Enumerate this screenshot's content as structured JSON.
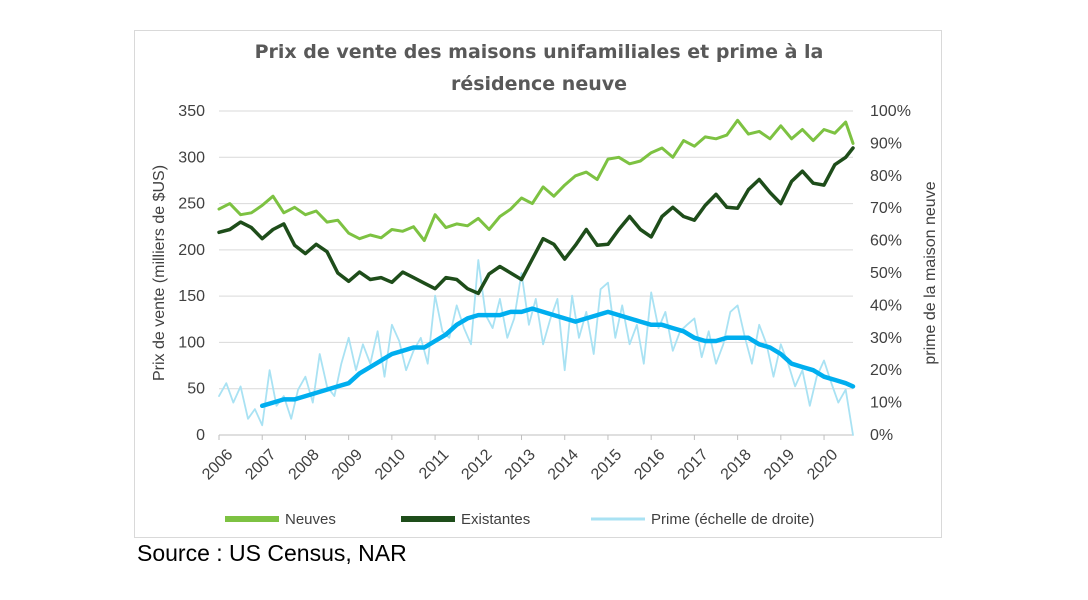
{
  "chart_data": {
    "type": "line",
    "title_lines": [
      "Prix de vente des maisons unifamiliales et prime à la",
      "résidence neuve"
    ],
    "ylabel_left": "Prix de vente (milliers de $US)",
    "ylabel_right": "prime de la maison neuve",
    "ylim_left": [
      0,
      350
    ],
    "ylim_right": [
      0,
      1
    ],
    "yticks_left": [
      "0",
      "50",
      "100",
      "150",
      "200",
      "250",
      "300",
      "350"
    ],
    "yticks_right": [
      "0%",
      "10%",
      "20%",
      "30%",
      "40%",
      "50%",
      "60%",
      "70%",
      "80%",
      "90%",
      "100%"
    ],
    "xticks": [
      "2006",
      "2007",
      "2008",
      "2009",
      "2010",
      "2011",
      "2012",
      "2013",
      "2014",
      "2015",
      "2016",
      "2017",
      "2018",
      "2019",
      "2020"
    ],
    "xlim": [
      2006,
      2020.67
    ],
    "grid": "horizontal",
    "legend_position": "bottom",
    "series": [
      {
        "name": "Neuves",
        "axis": "left",
        "color": "#7dc242",
        "width": 3,
        "x": [
          2006.0,
          2006.25,
          2006.5,
          2006.75,
          2007.0,
          2007.25,
          2007.5,
          2007.75,
          2008.0,
          2008.25,
          2008.5,
          2008.75,
          2009.0,
          2009.25,
          2009.5,
          2009.75,
          2010.0,
          2010.25,
          2010.5,
          2010.75,
          2011.0,
          2011.25,
          2011.5,
          2011.75,
          2012.0,
          2012.25,
          2012.5,
          2012.75,
          2013.0,
          2013.25,
          2013.5,
          2013.75,
          2014.0,
          2014.25,
          2014.5,
          2014.75,
          2015.0,
          2015.25,
          2015.5,
          2015.75,
          2016.0,
          2016.25,
          2016.5,
          2016.75,
          2017.0,
          2017.25,
          2017.5,
          2017.75,
          2018.0,
          2018.25,
          2018.5,
          2018.75,
          2019.0,
          2019.25,
          2019.5,
          2019.75,
          2020.0,
          2020.25,
          2020.5,
          2020.67
        ],
        "values": [
          244,
          250,
          238,
          240,
          248,
          258,
          240,
          246,
          238,
          242,
          230,
          232,
          218,
          212,
          216,
          213,
          222,
          220,
          225,
          210,
          238,
          224,
          228,
          226,
          234,
          222,
          236,
          244,
          256,
          250,
          268,
          258,
          270,
          280,
          284,
          276,
          298,
          300,
          293,
          296,
          305,
          310,
          300,
          318,
          312,
          322,
          320,
          324,
          340,
          325,
          328,
          320,
          334,
          320,
          330,
          318,
          330,
          326,
          338,
          315
        ]
      },
      {
        "name": "Existantes",
        "axis": "left",
        "color": "#1e4d1a",
        "width": 3.5,
        "x": [
          2006.0,
          2006.25,
          2006.5,
          2006.75,
          2007.0,
          2007.25,
          2007.5,
          2007.75,
          2008.0,
          2008.25,
          2008.5,
          2008.75,
          2009.0,
          2009.25,
          2009.5,
          2009.75,
          2010.0,
          2010.25,
          2010.5,
          2010.75,
          2011.0,
          2011.25,
          2011.5,
          2011.75,
          2012.0,
          2012.25,
          2012.5,
          2012.75,
          2013.0,
          2013.25,
          2013.5,
          2013.75,
          2014.0,
          2014.25,
          2014.5,
          2014.75,
          2015.0,
          2015.25,
          2015.5,
          2015.75,
          2016.0,
          2016.25,
          2016.5,
          2016.75,
          2017.0,
          2017.25,
          2017.5,
          2017.75,
          2018.0,
          2018.25,
          2018.5,
          2018.75,
          2019.0,
          2019.25,
          2019.5,
          2019.75,
          2020.0,
          2020.25,
          2020.5,
          2020.67
        ],
        "values": [
          219,
          222,
          230,
          224,
          212,
          222,
          228,
          205,
          196,
          206,
          198,
          175,
          166,
          176,
          168,
          170,
          165,
          176,
          170,
          164,
          158,
          170,
          168,
          158,
          153,
          174,
          182,
          175,
          168,
          190,
          212,
          206,
          190,
          205,
          222,
          205,
          206,
          222,
          236,
          222,
          214,
          236,
          246,
          236,
          232,
          248,
          260,
          246,
          245,
          265,
          276,
          262,
          250,
          274,
          285,
          272,
          270,
          292,
          300,
          310
        ]
      },
      {
        "name": "Prime (échelle de droite)",
        "axis": "right",
        "color": "#a9e2f3",
        "width": 1.8,
        "x": [
          2006.0,
          2006.17,
          2006.33,
          2006.5,
          2006.67,
          2006.83,
          2007.0,
          2007.17,
          2007.33,
          2007.5,
          2007.67,
          2007.83,
          2008.0,
          2008.17,
          2008.33,
          2008.5,
          2008.67,
          2008.83,
          2009.0,
          2009.17,
          2009.33,
          2009.5,
          2009.67,
          2009.83,
          2010.0,
          2010.17,
          2010.33,
          2010.5,
          2010.67,
          2010.83,
          2011.0,
          2011.17,
          2011.33,
          2011.5,
          2011.67,
          2011.83,
          2012.0,
          2012.17,
          2012.33,
          2012.5,
          2012.67,
          2012.83,
          2013.0,
          2013.17,
          2013.33,
          2013.5,
          2013.67,
          2013.83,
          2014.0,
          2014.17,
          2014.33,
          2014.5,
          2014.67,
          2014.83,
          2015.0,
          2015.17,
          2015.33,
          2015.5,
          2015.67,
          2015.83,
          2016.0,
          2016.17,
          2016.33,
          2016.5,
          2016.67,
          2016.83,
          2017.0,
          2017.17,
          2017.33,
          2017.5,
          2017.67,
          2017.83,
          2018.0,
          2018.17,
          2018.33,
          2018.5,
          2018.67,
          2018.83,
          2019.0,
          2019.17,
          2019.33,
          2019.5,
          2019.67,
          2019.83,
          2020.0,
          2020.17,
          2020.33,
          2020.5,
          2020.67
        ],
        "values": [
          0.12,
          0.16,
          0.1,
          0.15,
          0.05,
          0.08,
          0.03,
          0.2,
          0.09,
          0.12,
          0.05,
          0.14,
          0.18,
          0.1,
          0.25,
          0.15,
          0.12,
          0.22,
          0.3,
          0.2,
          0.28,
          0.22,
          0.32,
          0.18,
          0.34,
          0.29,
          0.2,
          0.26,
          0.3,
          0.22,
          0.43,
          0.32,
          0.3,
          0.4,
          0.33,
          0.28,
          0.54,
          0.37,
          0.33,
          0.42,
          0.3,
          0.36,
          0.5,
          0.34,
          0.42,
          0.28,
          0.36,
          0.42,
          0.2,
          0.43,
          0.3,
          0.38,
          0.25,
          0.45,
          0.47,
          0.3,
          0.4,
          0.28,
          0.34,
          0.22,
          0.44,
          0.33,
          0.38,
          0.26,
          0.32,
          0.34,
          0.36,
          0.24,
          0.32,
          0.22,
          0.28,
          0.38,
          0.4,
          0.3,
          0.22,
          0.34,
          0.28,
          0.18,
          0.28,
          0.22,
          0.15,
          0.2,
          0.09,
          0.18,
          0.23,
          0.16,
          0.1,
          0.14,
          0.0
        ]
      },
      {
        "name": "",
        "axis": "right",
        "color": "#00aeef",
        "width": 4.5,
        "x": [
          2007.0,
          2007.25,
          2007.5,
          2007.75,
          2008.0,
          2008.25,
          2008.5,
          2008.75,
          2009.0,
          2009.25,
          2009.5,
          2009.75,
          2010.0,
          2010.25,
          2010.5,
          2010.75,
          2011.0,
          2011.25,
          2011.5,
          2011.75,
          2012.0,
          2012.25,
          2012.5,
          2012.75,
          2013.0,
          2013.25,
          2013.5,
          2013.75,
          2014.0,
          2014.25,
          2014.5,
          2014.75,
          2015.0,
          2015.25,
          2015.5,
          2015.75,
          2016.0,
          2016.25,
          2016.5,
          2016.75,
          2017.0,
          2017.25,
          2017.5,
          2017.75,
          2018.0,
          2018.25,
          2018.5,
          2018.75,
          2019.0,
          2019.25,
          2019.5,
          2019.75,
          2020.0,
          2020.25,
          2020.5,
          2020.67
        ],
        "values": [
          0.09,
          0.1,
          0.11,
          0.11,
          0.12,
          0.13,
          0.14,
          0.15,
          0.16,
          0.19,
          0.21,
          0.23,
          0.25,
          0.26,
          0.27,
          0.27,
          0.29,
          0.31,
          0.34,
          0.36,
          0.37,
          0.37,
          0.37,
          0.38,
          0.38,
          0.39,
          0.38,
          0.37,
          0.36,
          0.35,
          0.36,
          0.37,
          0.38,
          0.37,
          0.36,
          0.35,
          0.34,
          0.34,
          0.33,
          0.32,
          0.3,
          0.29,
          0.29,
          0.3,
          0.3,
          0.3,
          0.28,
          0.27,
          0.25,
          0.22,
          0.21,
          0.2,
          0.18,
          0.17,
          0.16,
          0.15
        ]
      }
    ]
  },
  "legend_items": [
    {
      "label": "Neuves",
      "color": "#7dc242"
    },
    {
      "label": "Existantes",
      "color": "#1e4d1a"
    },
    {
      "label": "Prime (échelle de droite)",
      "color": "#a9e2f3"
    }
  ],
  "source_text": "Source : US Census, NAR"
}
